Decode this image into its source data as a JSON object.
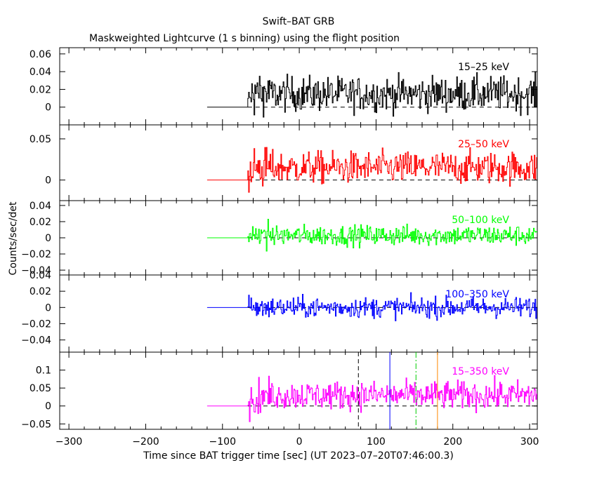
{
  "chart_data": {
    "type": "line",
    "title": "Swift–BAT GRB",
    "subtitle": "Maskweighted Lightcurve (1 s binning) using the flight position",
    "xlabel": "Time since BAT trigger time [sec] (UT 2023–07–20T07:46:00.3)",
    "ylabel": "Counts/sec/det",
    "xlim": [
      -312,
      310
    ],
    "xticks": [
      -300,
      -200,
      -100,
      0,
      100,
      200,
      300
    ],
    "xtick_labels": [
      "−300",
      "−200",
      "−100",
      "0",
      "100",
      "200",
      "300"
    ],
    "data_start": -120,
    "burst_start": -67,
    "data_end": 310,
    "panels": [
      {
        "name": "15–25 keV",
        "color": "#000000",
        "ylim": [
          -0.02,
          0.067
        ],
        "yticks": [
          0,
          0.02,
          0.04,
          0.06
        ],
        "ytick_labels": [
          "0",
          "0.02",
          "0.04",
          "0.06"
        ],
        "mean": 0.015,
        "noise": 0.014
      },
      {
        "name": "25–50 keV",
        "color": "#ff0000",
        "ylim": [
          -0.025,
          0.067
        ],
        "yticks": [
          0,
          0.05
        ],
        "ytick_labels": [
          "0",
          "0.05"
        ],
        "mean": 0.015,
        "noise": 0.014
      },
      {
        "name": "50–100 keV",
        "color": "#00ff00",
        "ylim": [
          -0.046,
          0.046
        ],
        "yticks": [
          -0.04,
          -0.02,
          0,
          0.02,
          0.04
        ],
        "ytick_labels": [
          "−0.04",
          "−0.02",
          "0",
          "0.02",
          "0.04"
        ],
        "mean": 0.003,
        "noise": 0.009
      },
      {
        "name": "100–350 keV",
        "color": "#0000ff",
        "ylim": [
          -0.055,
          0.04
        ],
        "yticks": [
          -0.04,
          -0.02,
          0,
          0.02,
          0.04
        ],
        "ytick_labels": [
          "−0.04",
          "−0.02",
          "0",
          "0.02",
          "0.04"
        ],
        "mean": 0.0,
        "noise": 0.009
      },
      {
        "name": "15–350 keV",
        "color": "#ff00ff",
        "ylim": [
          -0.065,
          0.15
        ],
        "yticks": [
          -0.05,
          0,
          0.05,
          0.1
        ],
        "ytick_labels": [
          "−0.05",
          "0",
          "0.05",
          "0.1"
        ],
        "mean": 0.03,
        "noise": 0.028
      }
    ],
    "vertical_markers": [
      {
        "x": 77,
        "color": "#000000",
        "style": "dashed"
      },
      {
        "x": 118,
        "color": "#0000ff",
        "style": "solid"
      },
      {
        "x": 152,
        "color": "#00cc00",
        "style": "dashdot"
      },
      {
        "x": 180,
        "color": "#ff8800",
        "style": "solid"
      }
    ]
  }
}
